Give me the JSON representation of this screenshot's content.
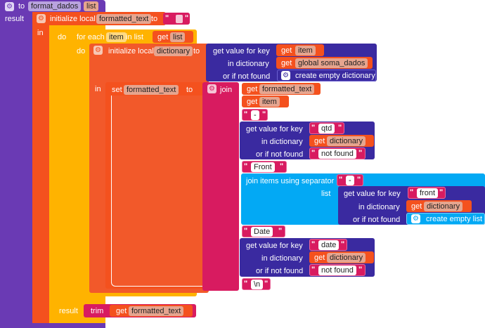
{
  "proc": {
    "to_label": "to",
    "name": "format_dados",
    "param": "list",
    "result_label": "result"
  },
  "init_local": {
    "label": "initialize local",
    "var": "formatted_text",
    "to_label": "to",
    "in_label": "in"
  },
  "foreach": {
    "do_label": "do",
    "for_each": "for each",
    "item_var": "item",
    "in_list": "in list",
    "get": "get",
    "list_var": "list",
    "inner_do": "do"
  },
  "init_dict": {
    "label": "initialize local",
    "var": "dictionary",
    "to_label": "to",
    "in_label": "in",
    "gvfk": "get value for key",
    "get": "get",
    "key_var": "item",
    "in_dict": "in dictionary",
    "global_var": "global soma_dados",
    "or_not_found": "or if not found",
    "create_empty_dict": "create empty dictionary"
  },
  "set_block": {
    "set": "set",
    "var": "formatted_text",
    "to": "to",
    "join": "join"
  },
  "join_items": {
    "get1": "get",
    "var1": "formatted_text",
    "get2": "get",
    "var2": "item",
    "sep1": "-",
    "gvfk1": "get value for key",
    "key1": "qtd",
    "in_dict1": "in dictionary",
    "get3": "get",
    "dict1": "dictionary",
    "nf1_label": "or if not found",
    "nf1": "not found",
    "front": "Front",
    "join_sep": "join items using separator",
    "sep2": "-",
    "list_label": "list",
    "gvfk2": "get value for key",
    "key2": "front",
    "in_dict2": "in dictionary",
    "get4": "get",
    "dict2": "dictionary",
    "nf2_label": "or if not found",
    "create_empty_list": "create empty list",
    "date": "Date",
    "gvfk3": "get value for key",
    "key3": "date",
    "in_dict3": "in dictionary",
    "get5": "get",
    "dict3": "dictionary",
    "nf3_label": "or if not found",
    "nf3": "not found",
    "newline": "\\n"
  },
  "result_trim": {
    "result_label": "result",
    "trim": "trim",
    "get": "get",
    "var": "formatted_text"
  },
  "colors": {
    "procedure": "#6a3ab4",
    "variables": "#f4511e",
    "control": "#ffb300",
    "text": "#d81b60",
    "dictionary": "#3a2aa0",
    "lists": "#03a9f4"
  }
}
